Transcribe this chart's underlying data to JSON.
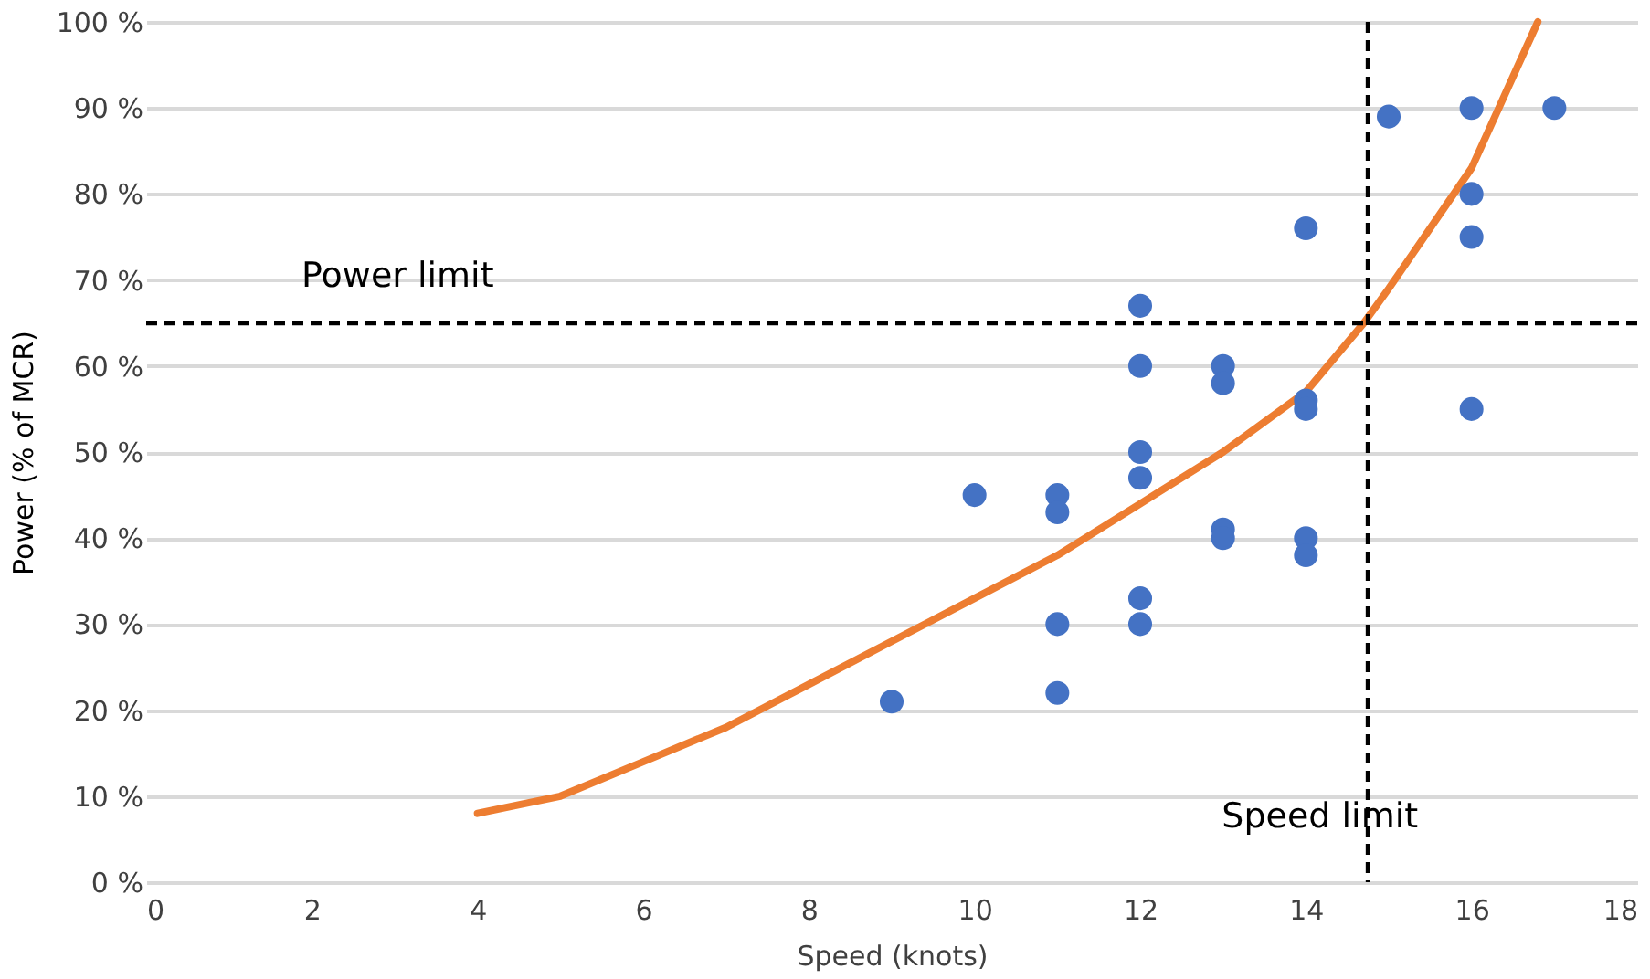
{
  "chart_data": {
    "type": "scatter",
    "xlabel": "Speed (knots)",
    "ylabel": "Power (% of MCR)",
    "xlim": [
      0,
      18
    ],
    "xticks": [
      0,
      2,
      4,
      6,
      8,
      10,
      12,
      14,
      16,
      18
    ],
    "ylim": [
      0,
      100
    ],
    "yticks": [
      {
        "value": 0,
        "label": "0 %"
      },
      {
        "value": 10,
        "label": "10 %"
      },
      {
        "value": 20,
        "label": "20 %"
      },
      {
        "value": 30,
        "label": "30 %"
      },
      {
        "value": 40,
        "label": "40 %"
      },
      {
        "value": 50,
        "label": "50 %"
      },
      {
        "value": 60,
        "label": "60 %"
      },
      {
        "value": 70,
        "label": "70 %"
      },
      {
        "value": 80,
        "label": "80 %"
      },
      {
        "value": 90,
        "label": "90 %"
      },
      {
        "value": 100,
        "label": "100 %"
      }
    ],
    "grid": "y",
    "series": [
      {
        "marker": "circle",
        "color": "#4472c4",
        "x": [
          9,
          10,
          11,
          11,
          11,
          11,
          12,
          12,
          12,
          12,
          12,
          12,
          13,
          13,
          13,
          13,
          14,
          14,
          14,
          14,
          14,
          15,
          16,
          16,
          16,
          16,
          17
        ],
        "values": [
          21,
          45,
          45,
          43,
          30,
          22,
          67,
          60,
          50,
          47,
          33,
          30,
          60,
          58,
          41,
          40,
          76,
          56,
          55,
          40,
          38,
          89,
          90,
          80,
          75,
          55,
          90
        ]
      },
      {
        "type": "line",
        "color": "#ed7d31",
        "line_style": "solid",
        "x": [
          4,
          5,
          6,
          7,
          8,
          9,
          10,
          11,
          12,
          13,
          14,
          14.7,
          15,
          16,
          16.8
        ],
        "values": [
          8,
          10,
          14,
          18,
          23,
          28,
          33,
          38,
          44,
          50,
          57,
          65,
          69,
          83,
          100
        ]
      }
    ],
    "ref_lines": [
      {
        "axis": "y",
        "value": 65,
        "color": "#000000",
        "line_style": "dashed",
        "label": "Power limit"
      },
      {
        "axis": "x",
        "value": 14.75,
        "color": "#000000",
        "line_style": "dashed",
        "label": "Speed limit"
      }
    ]
  }
}
